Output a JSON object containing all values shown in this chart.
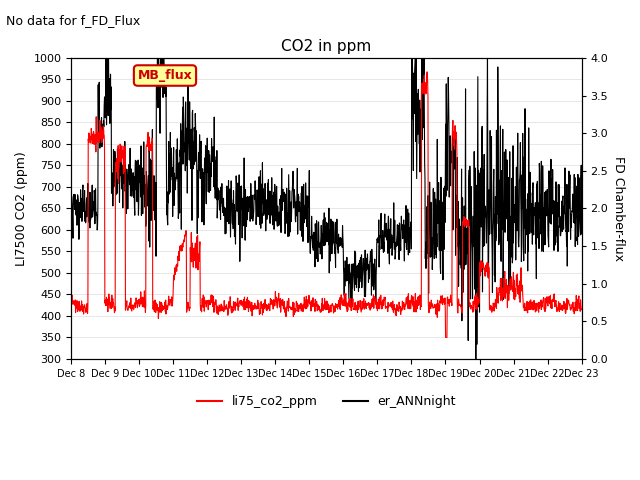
{
  "title": "CO2 in ppm",
  "subtitle": "No data for f_FD_Flux",
  "ylabel_left": "LI7500 CO2 (ppm)",
  "ylabel_right": "FD Chamber-flux",
  "ylim_left": [
    300,
    1000
  ],
  "ylim_right": [
    0.0,
    4.0
  ],
  "yticks_left": [
    300,
    350,
    400,
    450,
    500,
    550,
    600,
    650,
    700,
    750,
    800,
    850,
    900,
    950,
    1000
  ],
  "yticks_right": [
    0.0,
    0.5,
    1.0,
    1.5,
    2.0,
    2.5,
    3.0,
    3.5,
    4.0
  ],
  "xlabel": "",
  "xtick_labels": [
    "Dec 8",
    "Dec 9",
    "Dec 10",
    "Dec 11",
    "Dec 12",
    "Dec 13",
    "Dec 14",
    "Dec 15",
    "Dec 16",
    "Dec 17",
    "Dec 18",
    "Dec 19",
    "Dec 20",
    "Dec 21",
    "Dec 22",
    "Dec 23"
  ],
  "legend_label_red": "li75_co2_ppm",
  "legend_label_black": "er_ANNnight",
  "legend_box_label": "MB_flux",
  "legend_box_color": "#ffff99",
  "legend_box_edgecolor": "#cc0000",
  "line_red_color": "#ff0000",
  "line_black_color": "#000000",
  "background_color": "#ffffff",
  "grid_color": "#dddddd"
}
